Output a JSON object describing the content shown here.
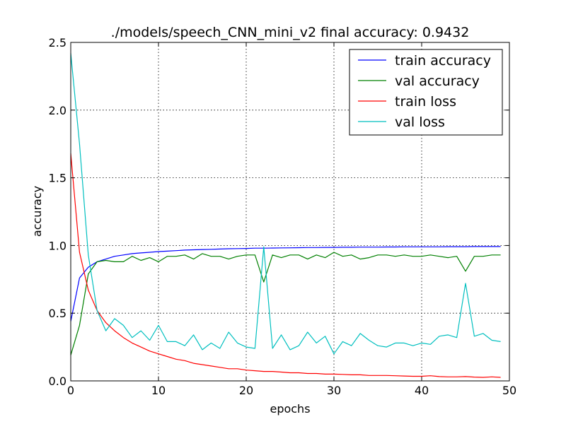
{
  "chart_data": {
    "type": "line",
    "title": "./models/speech_CNN_mini_v2 final accuracy: 0.9432",
    "xlabel": "epochs",
    "ylabel": "accuracy",
    "xlim": [
      0,
      50
    ],
    "ylim": [
      0.0,
      2.5
    ],
    "xticks": [
      0,
      10,
      20,
      30,
      40,
      50
    ],
    "xtick_labels": [
      "0",
      "10",
      "20",
      "30",
      "40",
      "50"
    ],
    "yticks": [
      0.0,
      0.5,
      1.0,
      1.5,
      2.0,
      2.5
    ],
    "ytick_labels": [
      "0.0",
      "0.5",
      "1.0",
      "1.5",
      "2.0",
      "2.5"
    ],
    "grid": true,
    "legend_position": "top-right",
    "x": [
      0,
      1,
      2,
      3,
      4,
      5,
      6,
      7,
      8,
      9,
      10,
      11,
      12,
      13,
      14,
      15,
      16,
      17,
      18,
      19,
      20,
      21,
      22,
      23,
      24,
      25,
      26,
      27,
      28,
      29,
      30,
      31,
      32,
      33,
      34,
      35,
      36,
      37,
      38,
      39,
      40,
      41,
      42,
      43,
      44,
      45,
      46,
      47,
      48,
      49
    ],
    "series": [
      {
        "name": "train accuracy",
        "color": "#0000ff",
        "values": [
          0.44,
          0.76,
          0.84,
          0.88,
          0.9,
          0.92,
          0.93,
          0.94,
          0.945,
          0.95,
          0.955,
          0.958,
          0.962,
          0.966,
          0.968,
          0.97,
          0.972,
          0.974,
          0.976,
          0.977,
          0.978,
          0.98,
          0.98,
          0.981,
          0.982,
          0.983,
          0.984,
          0.985,
          0.985,
          0.986,
          0.986,
          0.987,
          0.987,
          0.988,
          0.988,
          0.988,
          0.989,
          0.989,
          0.99,
          0.99,
          0.99,
          0.99,
          0.99,
          0.991,
          0.991,
          0.991,
          0.992,
          0.992,
          0.992,
          0.992
        ]
      },
      {
        "name": "val accuracy",
        "color": "#008000",
        "values": [
          0.19,
          0.41,
          0.79,
          0.88,
          0.89,
          0.88,
          0.88,
          0.92,
          0.89,
          0.91,
          0.88,
          0.92,
          0.92,
          0.93,
          0.9,
          0.94,
          0.92,
          0.92,
          0.9,
          0.92,
          0.93,
          0.93,
          0.73,
          0.93,
          0.91,
          0.93,
          0.93,
          0.9,
          0.93,
          0.91,
          0.95,
          0.92,
          0.93,
          0.9,
          0.91,
          0.93,
          0.93,
          0.92,
          0.93,
          0.92,
          0.92,
          0.93,
          0.92,
          0.91,
          0.92,
          0.81,
          0.92,
          0.92,
          0.93,
          0.93
        ]
      },
      {
        "name": "train loss",
        "color": "#ff0000",
        "values": [
          1.68,
          0.95,
          0.67,
          0.52,
          0.43,
          0.37,
          0.32,
          0.28,
          0.25,
          0.22,
          0.2,
          0.18,
          0.16,
          0.15,
          0.13,
          0.12,
          0.11,
          0.1,
          0.09,
          0.09,
          0.08,
          0.075,
          0.07,
          0.07,
          0.065,
          0.06,
          0.06,
          0.055,
          0.055,
          0.05,
          0.05,
          0.048,
          0.045,
          0.045,
          0.04,
          0.04,
          0.04,
          0.038,
          0.036,
          0.034,
          0.034,
          0.038,
          0.032,
          0.03,
          0.03,
          0.032,
          0.028,
          0.026,
          0.03,
          0.026
        ]
      },
      {
        "name": "val loss",
        "color": "#00bfbf",
        "values": [
          2.42,
          1.75,
          0.93,
          0.52,
          0.37,
          0.46,
          0.41,
          0.32,
          0.37,
          0.3,
          0.41,
          0.29,
          0.29,
          0.26,
          0.34,
          0.23,
          0.28,
          0.24,
          0.36,
          0.28,
          0.25,
          0.24,
          0.99,
          0.24,
          0.34,
          0.23,
          0.26,
          0.36,
          0.28,
          0.33,
          0.2,
          0.29,
          0.26,
          0.35,
          0.3,
          0.26,
          0.25,
          0.28,
          0.28,
          0.26,
          0.28,
          0.27,
          0.33,
          0.34,
          0.32,
          0.72,
          0.33,
          0.35,
          0.3,
          0.29
        ]
      }
    ]
  }
}
